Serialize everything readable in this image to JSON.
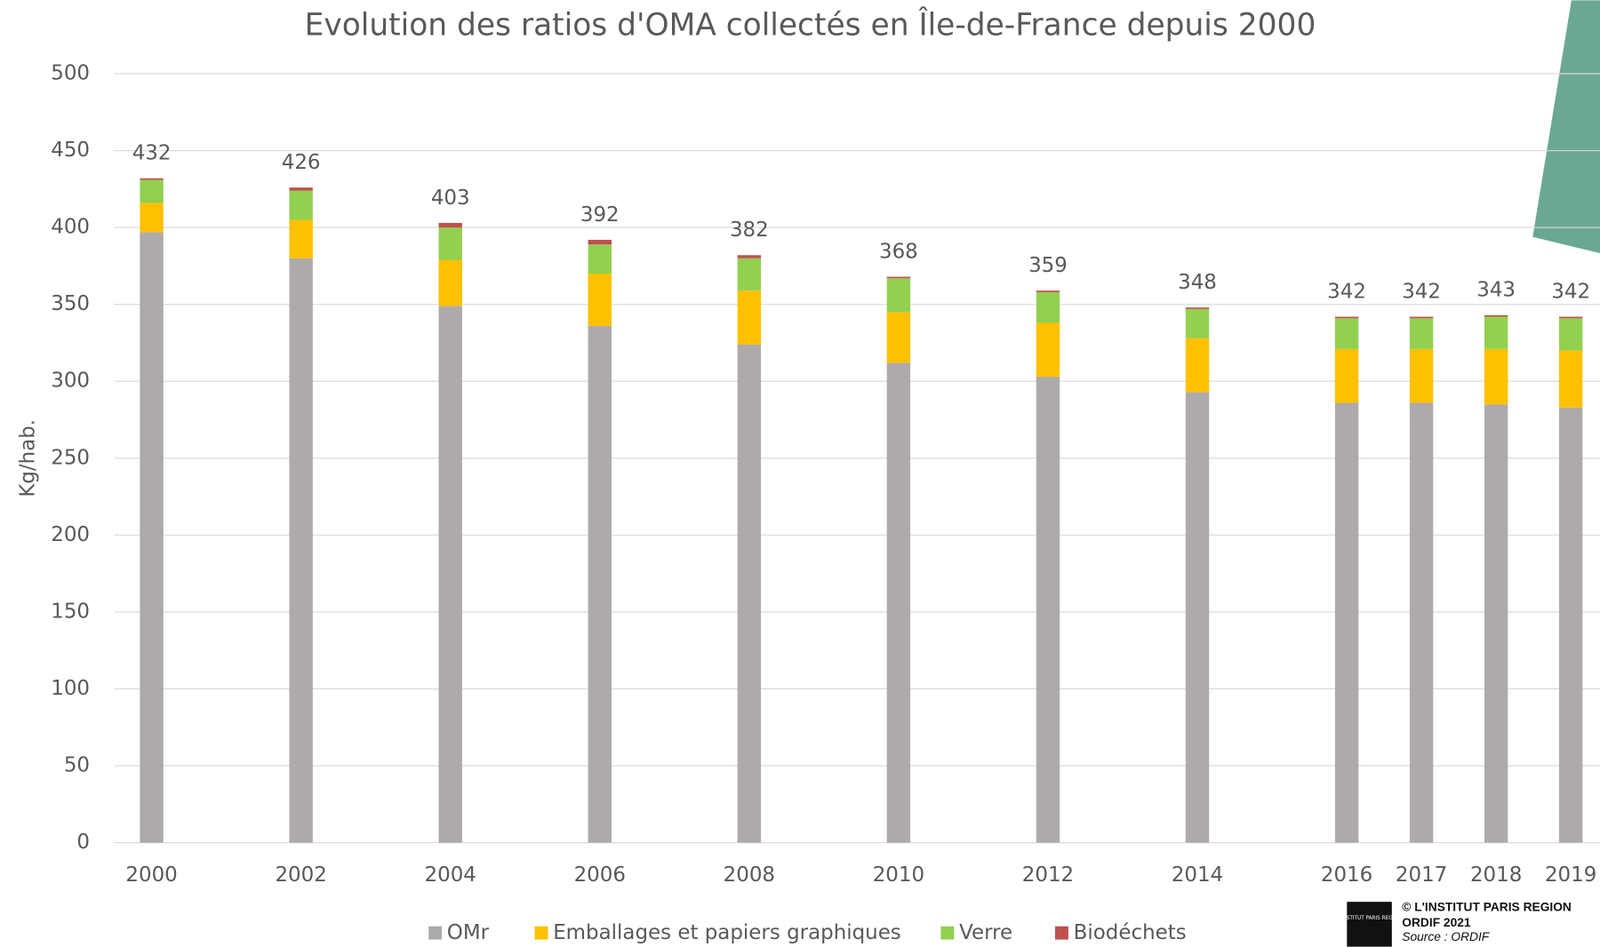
{
  "chart_data": {
    "type": "stacked_bar",
    "title": "Evolution des ratios d'OMA collectés en Île-de-France  depuis 2000",
    "y_label": "Kg/hab.",
    "x": [
      2000,
      2002,
      2004,
      2006,
      2008,
      2010,
      2012,
      2014,
      2016,
      2017,
      2018,
      2019
    ],
    "xlim": [
      1999.5,
      2019.5
    ],
    "series": [
      {
        "name": "OMr",
        "color": "#aeaaaa",
        "values": [
          397,
          380,
          349,
          336,
          324,
          312,
          303,
          293,
          286,
          286,
          285,
          283
        ]
      },
      {
        "name": "Emballages et papiers graphiques",
        "color": "#ffc000",
        "values": [
          19,
          25,
          30,
          34,
          35,
          33,
          35,
          35,
          35,
          35,
          36,
          37
        ]
      },
      {
        "name": "Verre",
        "color": "#92d050",
        "values": [
          15,
          19,
          21,
          19,
          21,
          22,
          20,
          19,
          20,
          20,
          21,
          21
        ]
      },
      {
        "name": "Biodéchets",
        "color": "#c0504d",
        "values": [
          1,
          2,
          3,
          3,
          2,
          1,
          1,
          1,
          1,
          1,
          1,
          1
        ]
      }
    ],
    "totals": [
      432,
      426,
      403,
      392,
      382,
      368,
      359,
      348,
      342,
      342,
      343,
      342
    ],
    "ylim": [
      0,
      500
    ],
    "yticks": [
      0,
      50,
      100,
      150,
      200,
      250,
      300,
      350,
      400,
      450,
      500
    ],
    "grid": true,
    "legend": "bottom"
  },
  "footer": {
    "logo_text": "L'INSTITUT PARIS REGION",
    "credit": "© L'INSTITUT PARIS REGION",
    "edition": "ORDIF 2021",
    "source": "Source : ORDIF"
  }
}
